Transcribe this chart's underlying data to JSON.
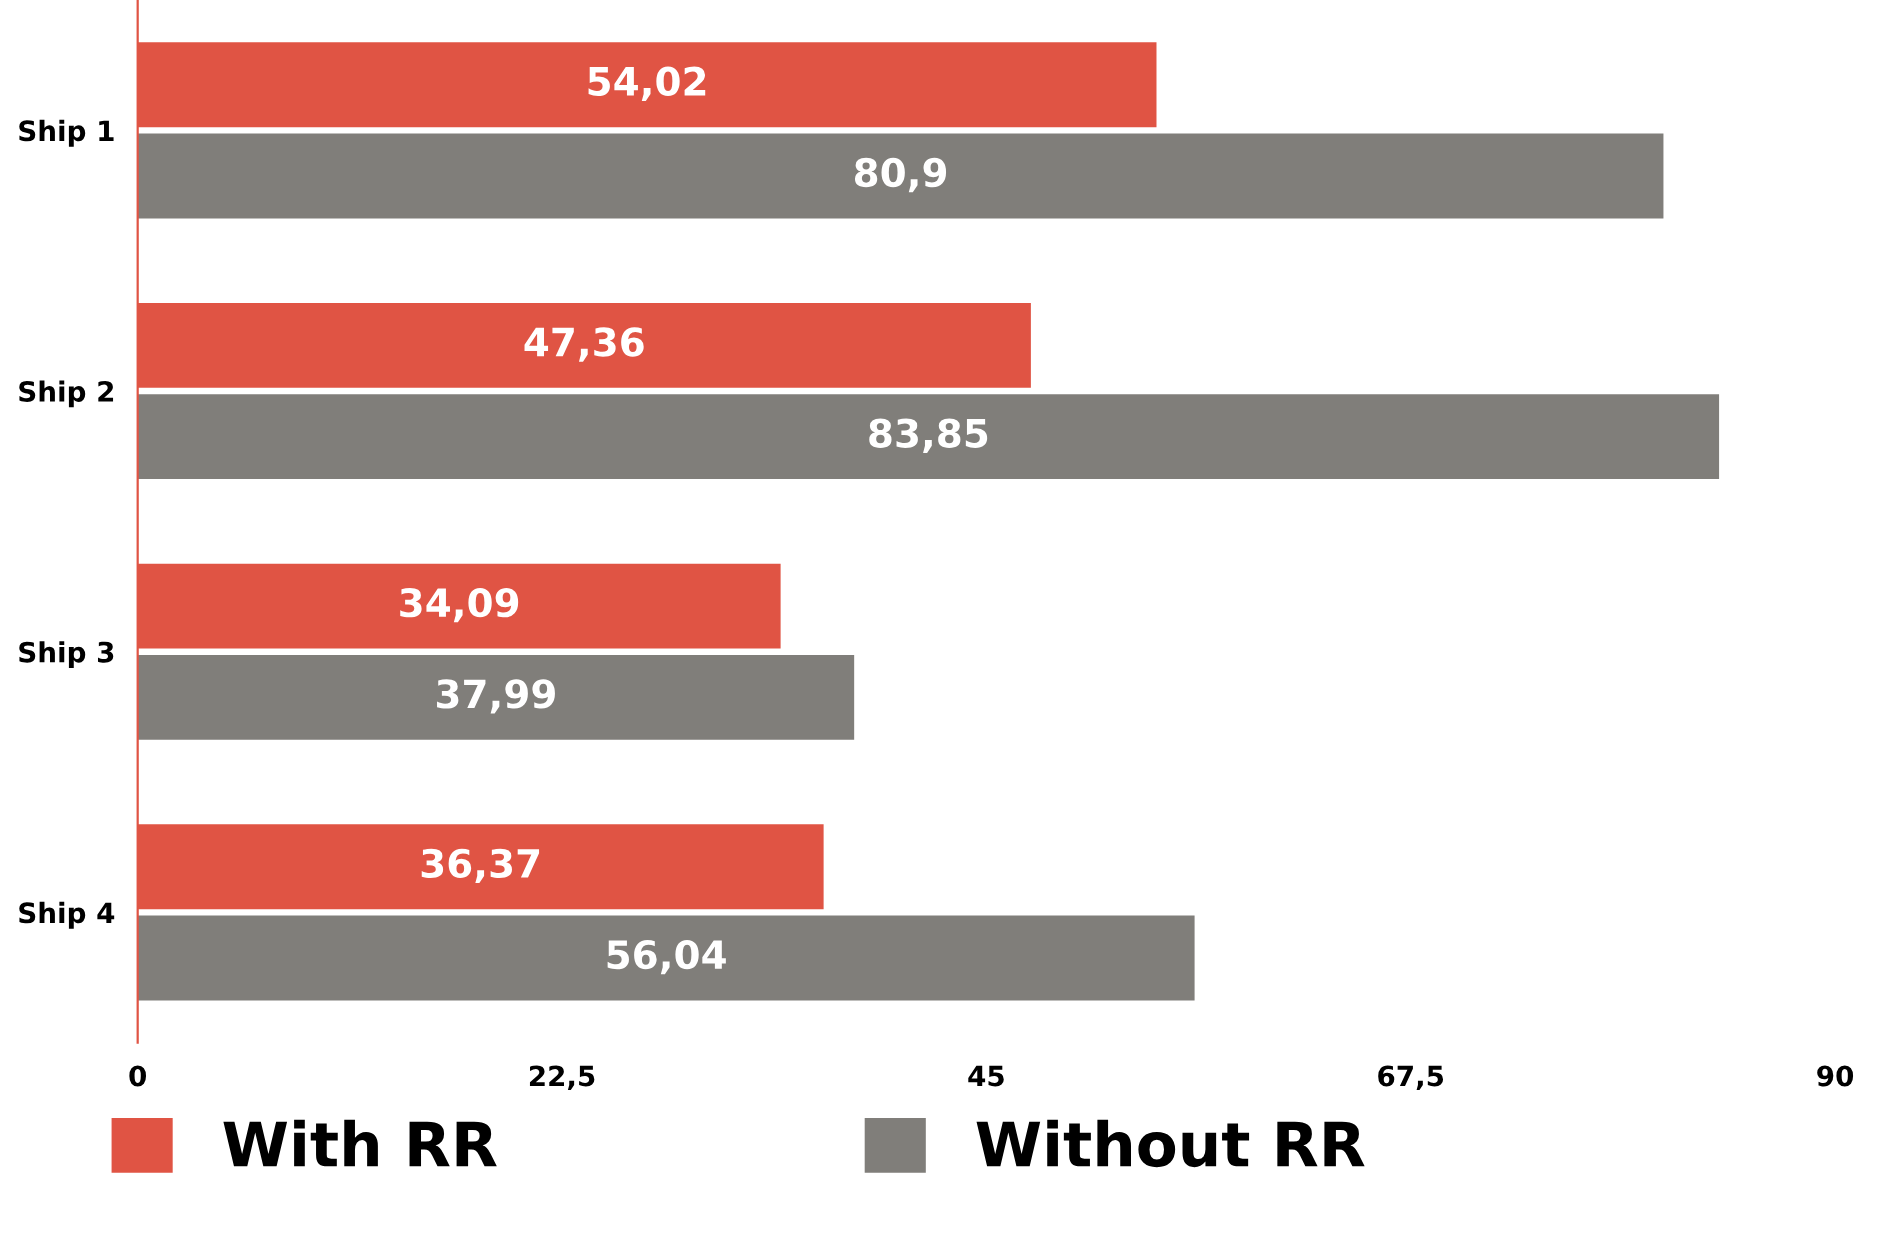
{
  "chart_data": {
    "type": "bar",
    "orientation": "horizontal",
    "categories": [
      "Ship 1",
      "Ship 2",
      "Ship 3",
      "Ship 4"
    ],
    "series": [
      {
        "name": "With RR",
        "color": "#e05444",
        "values": [
          54.02,
          47.36,
          34.09,
          36.37
        ],
        "value_labels": [
          "54,02",
          "47,36",
          "34,09",
          "36,37"
        ]
      },
      {
        "name": "Without RR",
        "color": "#807e7a",
        "values": [
          80.9,
          83.85,
          37.99,
          56.04
        ],
        "value_labels": [
          "80,9",
          "83,85",
          "37,99",
          "56,04"
        ]
      }
    ],
    "xlim": [
      0,
      90
    ],
    "xticks": [
      0,
      {
        "value": 22.5,
        "label": "22,5"
      },
      45,
      {
        "value": 67.5,
        "label": "67,5"
      },
      90
    ],
    "grid": false,
    "legend": "bottom"
  }
}
